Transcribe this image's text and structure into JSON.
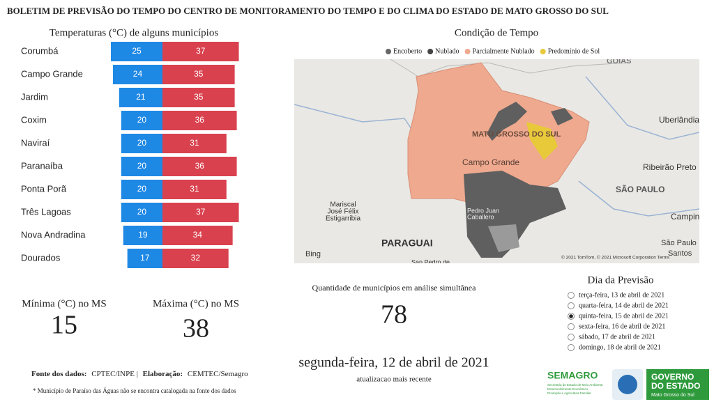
{
  "header": {
    "title": "BOLETIM DE PREVISÃO DO TEMPO DO CENTRO DE MONITORAMENTO DO TEMPO E DO CLIMA DO ESTADO DE MATO GROSSO DO SUL"
  },
  "chart_data": {
    "type": "bar",
    "title": "Temperaturas (°C) de alguns municípios",
    "categories": [
      "Corumbá",
      "Campo Grande",
      "Jardim",
      "Coxim",
      "Naviraí",
      "Paranaíba",
      "Ponta Porã",
      "Três Lagoas",
      "Nova Andradina",
      "Dourados"
    ],
    "series": [
      {
        "color": "#1e88e5",
        "values": [
          25,
          24,
          21,
          20,
          20,
          20,
          20,
          20,
          19,
          17
        ]
      },
      {
        "color": "#d9414e",
        "values": [
          37,
          35,
          35,
          36,
          31,
          36,
          31,
          37,
          34,
          32
        ]
      }
    ]
  },
  "summary": {
    "min_label": "Mínima (°C) no MS",
    "min_value": 15,
    "max_label": "Máxima (°C) no MS",
    "max_value": 38
  },
  "map": {
    "title": "Condição de Tempo",
    "legend": [
      {
        "label": "Encoberto",
        "color": "#666666"
      },
      {
        "label": "Nublado",
        "color": "#444444"
      },
      {
        "label": "Parcialmente Nublado",
        "color": "#eea98f"
      },
      {
        "label": "Predomínio de Sol",
        "color": "#e8c93a"
      }
    ],
    "places": [
      "GOIÁS",
      "Uberlândia",
      "MATO GROSSO DO SUL",
      "Campo Grande",
      "Ribeirão Preto",
      "SÃO PAULO",
      "Mariscal",
      "José Félix",
      "Estigarribia",
      "PARAGUAI",
      "Pedro Juan",
      "Caballero",
      "Campinas",
      "São Paulo",
      "Santos",
      "San Pedro de"
    ],
    "brand": "Bing",
    "attribution": "© 2021 TomTom, © 2021 Microsoft Corporation  Terms"
  },
  "count": {
    "label": "Quantidade de municípios em análise simultânea",
    "value": 78
  },
  "date": {
    "text": "segunda-feira, 12 de abril de 2021",
    "caption": "atualizacao mais recente"
  },
  "forecast": {
    "title": "Dia da Previsão",
    "options": [
      "terça-feira, 13 de abril de 2021",
      "quarta-feira, 14 de abril de 2021",
      "quinta-feira, 15 de abril de 2021",
      "sexta-feira, 16 de abril de 2021",
      "sábado, 17 de abril de 2021",
      "domingo, 18 de abril de 2021"
    ],
    "selected": 2
  },
  "footer": {
    "source_label": "Fonte dos dados:",
    "source": "CPTEC/INPE |",
    "elab_label": "Elaboração:",
    "elab": "CEMTEC/Semagro",
    "note": "* Município de Paraíso das Águas não se encontra catalogada na fonte dos dados"
  },
  "logos": {
    "semagro": "SEMAGRO",
    "semagro_sub1": "Secretaria de Estado de Meio Ambiente,",
    "semagro_sub2": "Desenvolvimento Econômico,",
    "semagro_sub3": "Produção e Agricultura Familiar",
    "gov1": "GOVERNO",
    "gov2": "DO ESTADO",
    "gov3": "Mato Grosso do Sul"
  }
}
